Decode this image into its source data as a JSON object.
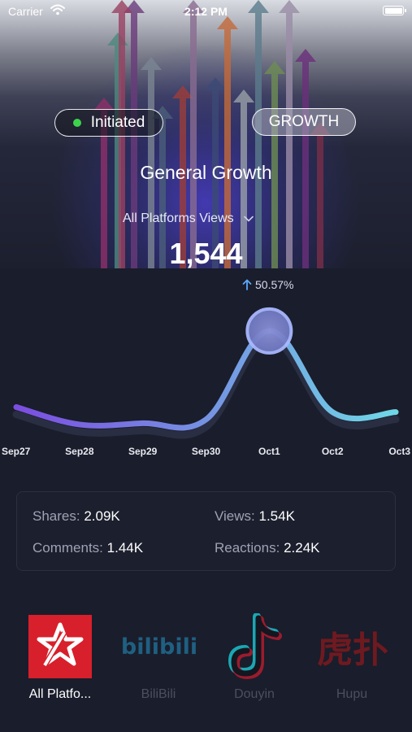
{
  "status_bar": {
    "carrier": "Carrier",
    "time": "2:12 PM"
  },
  "header": {
    "status_label": "Initiated",
    "growth_label": "GROWTH",
    "title": "General Growth"
  },
  "metric": {
    "selector_label": "All Platforms Views",
    "value": "1,544",
    "change": "50.57%"
  },
  "chart_data": {
    "type": "line",
    "categories": [
      "Sep27",
      "Sep28",
      "Sep29",
      "Sep30",
      "Oct1",
      "Oct2",
      "Oct3"
    ],
    "series": [
      {
        "values": [
          320,
          40,
          60,
          120,
          1544,
          240,
          240
        ]
      }
    ],
    "ylim": [
      0,
      1700
    ],
    "highlight_index": 4,
    "grid": false
  },
  "stats": {
    "shares_label": "Shares:",
    "shares_value": "2.09K",
    "views_label": "Views:",
    "views_value": "1.54K",
    "comments_label": "Comments:",
    "comments_value": "1.44K",
    "reactions_label": "Reactions:",
    "reactions_value": "2.24K"
  },
  "platforms": [
    {
      "label": "All Platfo...",
      "logo_text": "",
      "icon": "all-platforms-logo",
      "active": true
    },
    {
      "label": "BiliBili",
      "logo_text": "bilibili",
      "icon": "bilibili-logo",
      "active": false
    },
    {
      "label": "Douyin",
      "logo_text": "",
      "icon": "douyin-logo",
      "active": false
    },
    {
      "label": "Hupu",
      "logo_text": "虎扑",
      "icon": "hupu-logo",
      "active": false
    }
  ],
  "colors": {
    "accent_dot": "#3cd34c",
    "line_start": "#7b4ee0",
    "line_end": "#6fd7e6",
    "brand_red": "#d7202b"
  }
}
